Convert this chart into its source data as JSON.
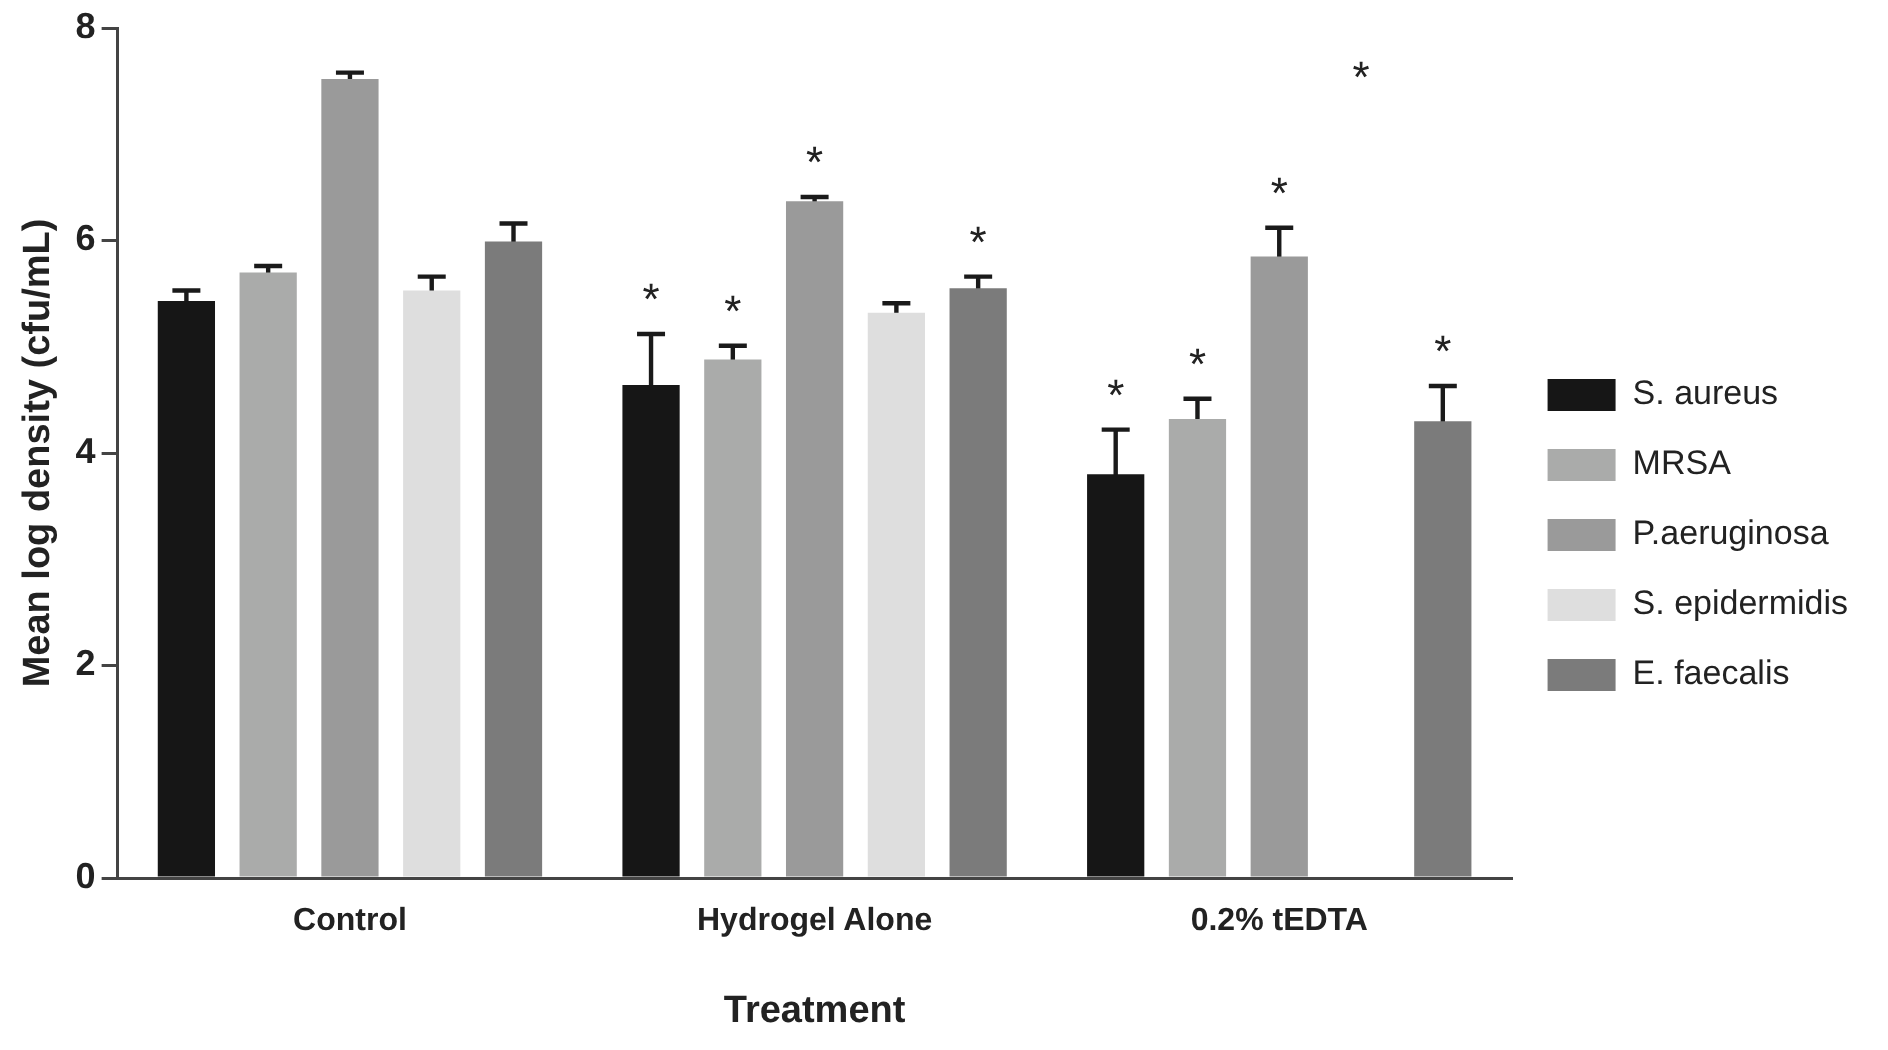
{
  "chart_data": {
    "type": "bar",
    "xlabel": "Treatment",
    "ylabel": "Mean log density (cfu/mL)",
    "categories": [
      "Control",
      "Hydrogel Alone",
      "0.2% tEDTA"
    ],
    "series": [
      {
        "name": "S. aureus",
        "color": "#161616",
        "values": [
          5.43,
          4.64,
          3.8
        ],
        "errors": [
          0.1,
          0.48,
          0.42
        ],
        "value_labels": [
          null,
          "*",
          "*"
        ]
      },
      {
        "name": "MRSA",
        "color": "#aaabaa",
        "values": [
          5.7,
          4.88,
          4.32
        ],
        "errors": [
          0.06,
          0.13,
          0.19
        ],
        "value_labels": [
          null,
          "*",
          "*"
        ]
      },
      {
        "name": "P.aeruginosa",
        "color": "#9a9a9a",
        "values": [
          7.52,
          6.37,
          5.85
        ],
        "errors": [
          0.06,
          0.04,
          0.27
        ],
        "value_labels": [
          null,
          "*",
          "*"
        ]
      },
      {
        "name": "S. epidermidis",
        "color": "#dedede",
        "values": [
          5.53,
          5.32,
          null
        ],
        "errors": [
          0.13,
          0.09,
          null
        ],
        "value_labels": [
          null,
          null,
          "*"
        ]
      },
      {
        "name": "E. faecalis",
        "color": "#7b7b7b",
        "values": [
          5.99,
          5.55,
          4.3
        ],
        "errors": [
          0.17,
          0.11,
          0.33
        ],
        "value_labels": [
          null,
          "*",
          "*"
        ]
      }
    ],
    "ylim": [
      0,
      8
    ],
    "yticks": [
      0,
      2,
      4,
      6,
      8
    ],
    "grid": false,
    "legend": "right"
  }
}
